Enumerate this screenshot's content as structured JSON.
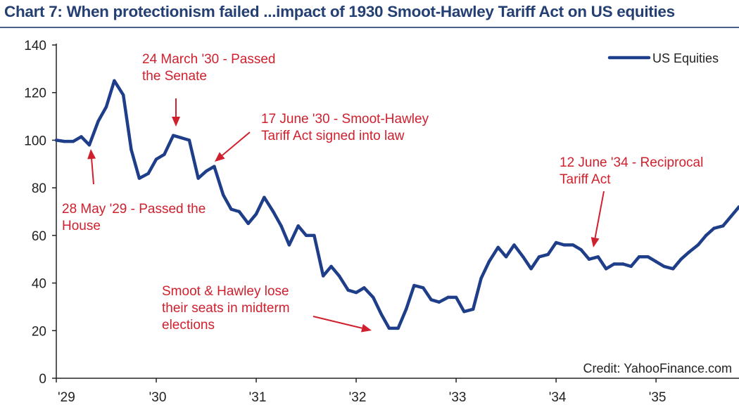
{
  "chart_title": "Chart 7: When protectionism failed ...impact of 1930 Smoot-Hawley Tariff Act on US equities",
  "colors": {
    "title": "#243f73",
    "series": "#1f3e8a",
    "annotation": "#d0202e",
    "rule": "#4a5f8c",
    "axis": "#222222"
  },
  "credit": "Credit: YahooFinance.com",
  "chart_data": {
    "type": "line",
    "title": "Chart 7: When protectionism failed ...impact of 1930 Smoot-Hawley Tariff Act on US equities",
    "xlabel": "",
    "ylabel": "",
    "ylim": [
      0,
      140
    ],
    "yticks": [
      0,
      20,
      40,
      60,
      80,
      100,
      120,
      140
    ],
    "xlim": [
      1929.0,
      1935.83
    ],
    "xticks": [
      {
        "value": 1929,
        "label": "'29"
      },
      {
        "value": 1930,
        "label": "'30"
      },
      {
        "value": 1931,
        "label": "'31"
      },
      {
        "value": 1932,
        "label": "'32"
      },
      {
        "value": 1933,
        "label": "'33"
      },
      {
        "value": 1934,
        "label": "'34"
      },
      {
        "value": 1935,
        "label": "'35"
      }
    ],
    "grid": false,
    "legend_position": "top-right",
    "series": [
      {
        "name": "US Equities",
        "x": [
          1929.0,
          1929.08,
          1929.17,
          1929.25,
          1929.33,
          1929.42,
          1929.5,
          1929.58,
          1929.67,
          1929.75,
          1929.83,
          1929.92,
          1930.0,
          1930.08,
          1930.17,
          1930.25,
          1930.33,
          1930.42,
          1930.5,
          1930.58,
          1930.67,
          1930.75,
          1930.83,
          1930.92,
          1931.0,
          1931.08,
          1931.17,
          1931.25,
          1931.33,
          1931.42,
          1931.5,
          1931.58,
          1931.67,
          1931.75,
          1931.83,
          1931.92,
          1932.0,
          1932.08,
          1932.17,
          1932.25,
          1932.33,
          1932.42,
          1932.5,
          1932.58,
          1932.67,
          1932.75,
          1932.83,
          1932.92,
          1933.0,
          1933.08,
          1933.17,
          1933.25,
          1933.33,
          1933.42,
          1933.5,
          1933.58,
          1933.67,
          1933.75,
          1933.83,
          1933.92,
          1934.0,
          1934.08,
          1934.17,
          1934.25,
          1934.33,
          1934.42,
          1934.5,
          1934.58,
          1934.67,
          1934.75,
          1934.83,
          1934.92,
          1935.0,
          1935.08,
          1935.17,
          1935.25,
          1935.33,
          1935.42,
          1935.5,
          1935.58,
          1935.67,
          1935.75,
          1935.83
        ],
        "values": [
          100,
          99.5,
          99.5,
          101.5,
          98,
          108,
          114,
          125,
          119,
          96,
          84,
          86,
          92,
          94,
          102,
          101,
          100,
          84,
          87,
          89,
          77,
          71,
          70,
          65,
          69,
          76,
          70,
          64,
          56,
          64,
          60,
          60,
          43,
          47,
          43,
          37,
          36,
          38,
          34,
          27,
          21,
          21,
          29,
          39,
          38,
          33,
          32,
          34,
          34,
          28,
          29,
          42,
          49,
          55,
          51,
          56,
          51,
          46,
          51,
          52,
          57,
          56,
          56,
          54,
          50,
          51,
          46,
          48,
          48,
          47,
          51,
          51,
          49,
          47,
          46,
          50,
          53,
          56,
          60,
          63,
          64,
          68,
          72
        ]
      }
    ],
    "annotations": [
      {
        "lines": [
          "24 March '30 - Passed",
          "the Senate"
        ],
        "x": 1930.23,
        "y": 102
      },
      {
        "lines": [
          "17 June '30 - Smoot-Hawley",
          "Tariff Act signed into law"
        ],
        "x": 1930.46,
        "y": 89
      },
      {
        "lines": [
          "28 May '29 - Passed the",
          "House"
        ],
        "x": 1929.4,
        "y": 98
      },
      {
        "lines": [
          "Smoot & Hawley lose",
          "their seats in midterm",
          "elections"
        ],
        "x": 1932.2,
        "y": 21
      },
      {
        "lines": [
          "12 June '34 - Reciprocal",
          "Tariff Act"
        ],
        "x": 1934.45,
        "y": 51
      }
    ]
  }
}
